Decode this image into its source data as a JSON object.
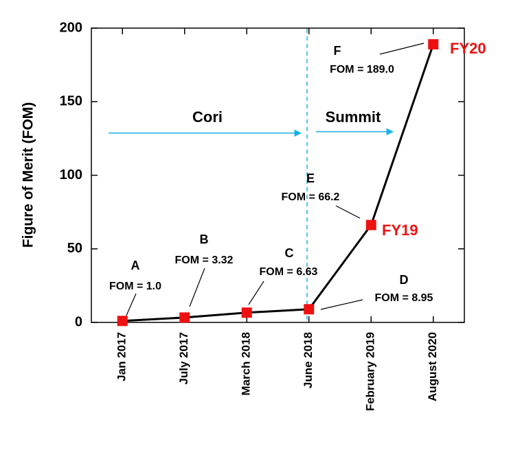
{
  "chart_data": {
    "type": "line",
    "ylabel": "Figure of Merit (FOM)",
    "categories": [
      "Jan 2017",
      "July 2017",
      "March 2018",
      "June 2018",
      "February 2019",
      "August 2020"
    ],
    "values": [
      1.0,
      3.32,
      6.63,
      8.95,
      66.2,
      189.0
    ],
    "value_labels": [
      "FOM = 1.0",
      "FOM = 3.32",
      "FOM = 6.63",
      "FOM = 8.95",
      "FOM = 66.2",
      "FOM = 189.0"
    ],
    "point_labels": [
      "A",
      "B",
      "C",
      "D",
      "E",
      "F"
    ],
    "fy_labels": [
      null,
      null,
      null,
      null,
      "FY19",
      "FY20"
    ],
    "annotations": [
      "Cori",
      "Summit"
    ],
    "color": "#000000",
    "marker_color": "#ee1111",
    "fy_color": "#ee1111",
    "arrow_color": "#1ab0e8",
    "ylim": [
      0,
      200
    ],
    "yticks": [
      0,
      50,
      100,
      150,
      200
    ],
    "grid": false
  }
}
